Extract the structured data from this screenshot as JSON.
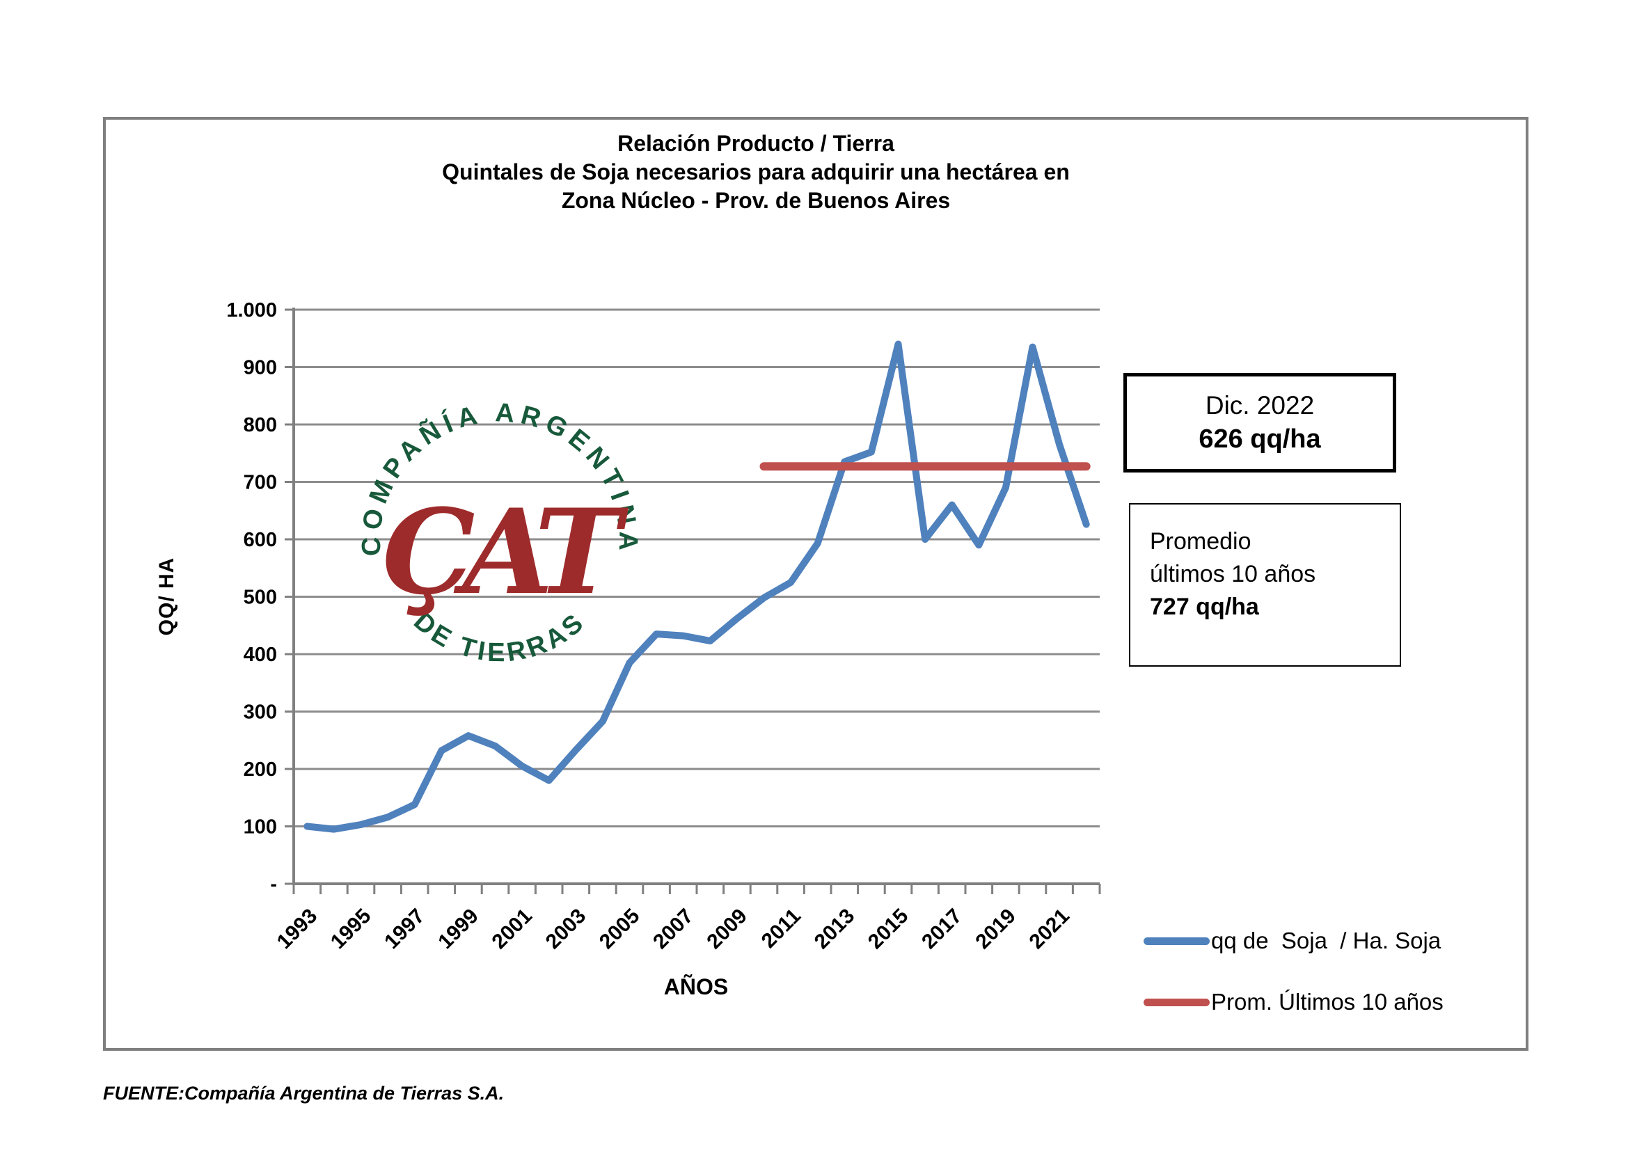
{
  "page": {
    "title_lines": [
      "Relación Producto / Tierra",
      "Quintales de Soja necesarios para adquirir una hectárea en",
      "Zona Núcleo - Prov. de Buenos Aires"
    ],
    "footer": "FUENTE:Compañía Argentina de Tierras S.A."
  },
  "annotations": {
    "dic_box": {
      "line1": "Dic. 2022",
      "line2": "626 qq/ha"
    },
    "prom_box": {
      "line1": "Promedio",
      "line2": "últimos 10 años",
      "line3": "727 qq/ha"
    }
  },
  "legend": [
    {
      "label": "qq de  Soja  / Ha. Soja",
      "color": "#4f81bd"
    },
    {
      "label": "Prom. Últimos 10 años",
      "color": "#c0504d"
    }
  ],
  "logo": {
    "top_text": "COMPAÑÍA ARGENTINA",
    "bottom_text": "DE TIERRAS",
    "monogram": "ÇAT",
    "green": "#17593a",
    "red": "#9e2b2b"
  },
  "colors": {
    "series_blue": "#4f81bd",
    "series_red": "#c0504d",
    "grid": "#8c8c8c",
    "axis": "#808080",
    "border": "#7f7f7f"
  },
  "chart_data": {
    "type": "line",
    "title": "Relación Producto / Tierra — Quintales de Soja necesarios para adquirir una hectárea en Zona Núcleo - Prov. de Buenos Aires",
    "xlabel": "AÑOS",
    "ylabel": "QQ/ HA",
    "ylim": [
      0,
      1000
    ],
    "ytick_step": 100,
    "ytick_labels": [
      "-",
      "100",
      "200",
      "300",
      "400",
      "500",
      "600",
      "700",
      "800",
      "900",
      "1.000"
    ],
    "grid": true,
    "legend_position": "right-bottom",
    "x": [
      1993,
      1994,
      1995,
      1996,
      1997,
      1998,
      1999,
      2000,
      2001,
      2002,
      2003,
      2004,
      2005,
      2006,
      2007,
      2008,
      2009,
      2010,
      2011,
      2012,
      2013,
      2014,
      2015,
      2016,
      2017,
      2018,
      2019,
      2020,
      2021,
      2022
    ],
    "xtick_years": [
      1993,
      1995,
      1997,
      1999,
      2001,
      2003,
      2005,
      2007,
      2009,
      2011,
      2013,
      2015,
      2017,
      2019,
      2021
    ],
    "series": [
      {
        "name": "qq de  Soja  / Ha. Soja",
        "type": "line",
        "color": "#4f81bd",
        "values": [
          100,
          95,
          103,
          116,
          138,
          232,
          258,
          240,
          205,
          180,
          233,
          283,
          385,
          435,
          432,
          423,
          462,
          498,
          525,
          593,
          735,
          752,
          940,
          600,
          660,
          590,
          690,
          935,
          765,
          626
        ]
      },
      {
        "name": "Prom. Últimos 10 años",
        "type": "hline",
        "color": "#c0504d",
        "value": 727,
        "from_year": 2010,
        "to_year": 2022
      }
    ],
    "annotations": [
      {
        "text": "Dic. 2022 626 qq/ha",
        "year": 2022,
        "value": 626
      },
      {
        "text": "Promedio últimos 10 años 727 qq/ha",
        "value": 727
      }
    ]
  }
}
